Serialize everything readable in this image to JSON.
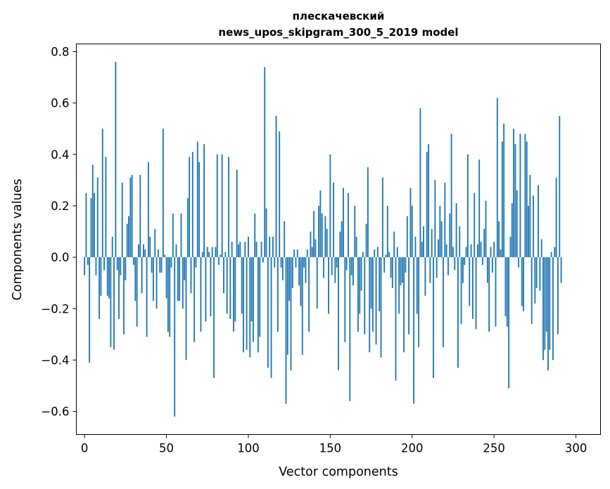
{
  "chart_data": {
    "type": "bar",
    "title": "плескачевский",
    "subtitle": "news_upos_skipgram_300_5_2019 model",
    "xlabel": "Vector components",
    "ylabel": "Components values",
    "xlim": [
      -5,
      315
    ],
    "ylim": [
      -0.69,
      0.83
    ],
    "xticks": [
      0,
      50,
      100,
      150,
      200,
      250,
      300
    ],
    "xtick_labels": [
      "0",
      "50",
      "100",
      "150",
      "200",
      "250",
      "300"
    ],
    "yticks": [
      -0.6,
      -0.4,
      -0.2,
      0.0,
      0.2,
      0.4,
      0.6,
      0.8
    ],
    "ytick_labels": [
      "−0.6",
      "−0.4",
      "−0.2",
      "0.0",
      "0.2",
      "0.4",
      "0.6",
      "0.8"
    ],
    "grid": false,
    "bar_color": "#1f77b4",
    "values": [
      -0.07,
      0.25,
      -0.03,
      -0.41,
      0.23,
      0.36,
      0.25,
      -0.07,
      0.31,
      -0.24,
      -0.15,
      0.5,
      -0.05,
      0.39,
      -0.15,
      -0.16,
      -0.35,
      0.08,
      -0.36,
      0.76,
      -0.05,
      -0.24,
      -0.07,
      0.29,
      -0.3,
      -0.09,
      0.13,
      0.16,
      0.31,
      0.32,
      -0.03,
      -0.17,
      -0.27,
      0.05,
      0.32,
      -0.14,
      0.05,
      0.03,
      -0.31,
      0.37,
      0.08,
      -0.06,
      -0.17,
      0.11,
      -0.2,
      0.03,
      -0.06,
      -0.06,
      0.5,
      0.01,
      -0.16,
      -0.29,
      -0.31,
      -0.04,
      0.17,
      -0.62,
      0.05,
      -0.17,
      -0.17,
      0.17,
      -0.2,
      -0.09,
      -0.4,
      0.23,
      0.39,
      -0.14,
      0.41,
      -0.33,
      -0.04,
      0.45,
      0.37,
      -0.29,
      0.02,
      0.44,
      -0.25,
      0.04,
      0.02,
      -0.23,
      0.04,
      -0.47,
      0.04,
      0.4,
      -0.03,
      0.01,
      0.4,
      -0.14,
      0.02,
      -0.22,
      0.39,
      -0.24,
      0.06,
      -0.29,
      -0.25,
      0.34,
      0.05,
      0.06,
      -0.22,
      -0.37,
      0.06,
      -0.36,
      0.08,
      -0.39,
      -0.25,
      -0.33,
      0.17,
      0.06,
      -0.37,
      -0.31,
      0.06,
      -0.02,
      0.74,
      0.19,
      -0.43,
      0.08,
      -0.47,
      0.08,
      -0.04,
      0.55,
      -0.29,
      0.49,
      -0.04,
      -0.09,
      0.14,
      -0.57,
      -0.38,
      -0.17,
      -0.44,
      -0.12,
      0.03,
      -0.04,
      0.03,
      -0.11,
      -0.19,
      -0.38,
      -0.04,
      -0.1,
      0.03,
      -0.29,
      0.1,
      0.04,
      0.18,
      0.07,
      -0.2,
      0.2,
      0.26,
      0.17,
      -0.08,
      0.16,
      0.11,
      -0.22,
      0.4,
      -0.07,
      0.29,
      -0.1,
      -0.04,
      -0.44,
      0.1,
      0.14,
      0.27,
      -0.33,
      -0.05,
      0.25,
      -0.56,
      -0.07,
      -0.11,
      0.2,
      0.08,
      -0.29,
      -0.22,
      -0.13,
      0.02,
      -0.3,
      0.13,
      0.35,
      -0.37,
      -0.2,
      -0.29,
      0.03,
      -0.34,
      0.04,
      -0.21,
      -0.39,
      0.31,
      -0.06,
      0.01,
      0.2,
      0.02,
      -0.08,
      -0.12,
      0.1,
      -0.48,
      0.04,
      -0.22,
      -0.11,
      -0.1,
      -0.37,
      -0.06,
      0.16,
      -0.3,
      0.27,
      0.2,
      -0.57,
      0.08,
      -0.22,
      -0.35,
      0.58,
      0.06,
      0.12,
      -0.15,
      0.41,
      0.44,
      -0.1,
      0.11,
      -0.47,
      0.3,
      -0.08,
      0.07,
      0.2,
      0.14,
      -0.35,
      0.29,
      0.05,
      -0.07,
      0.17,
      0.48,
      0.04,
      -0.05,
      0.21,
      -0.43,
      0.12,
      -0.26,
      -0.1,
      -0.03,
      0.04,
      0.4,
      -0.19,
      0.05,
      -0.24,
      0.25,
      -0.28,
      0.05,
      0.38,
      0.06,
      -0.03,
      0.11,
      0.22,
      -0.1,
      -0.29,
      0.04,
      -0.06,
      0.06,
      -0.27,
      0.62,
      0.14,
      0.03,
      0.45,
      0.52,
      -0.23,
      -0.27,
      -0.51,
      0.08,
      0.21,
      0.5,
      0.44,
      0.26,
      -0.04,
      0.48,
      -0.19,
      -0.21,
      0.48,
      0.45,
      0.2,
      0.32,
      -0.26,
      0.24,
      -0.18,
      -0.12,
      0.28,
      -0.13,
      0.07,
      -0.4,
      -0.36,
      -0.29,
      -0.44,
      -0.36,
      0.02,
      -0.4,
      0.04,
      0.31,
      -0.3,
      0.55,
      -0.1
    ]
  }
}
